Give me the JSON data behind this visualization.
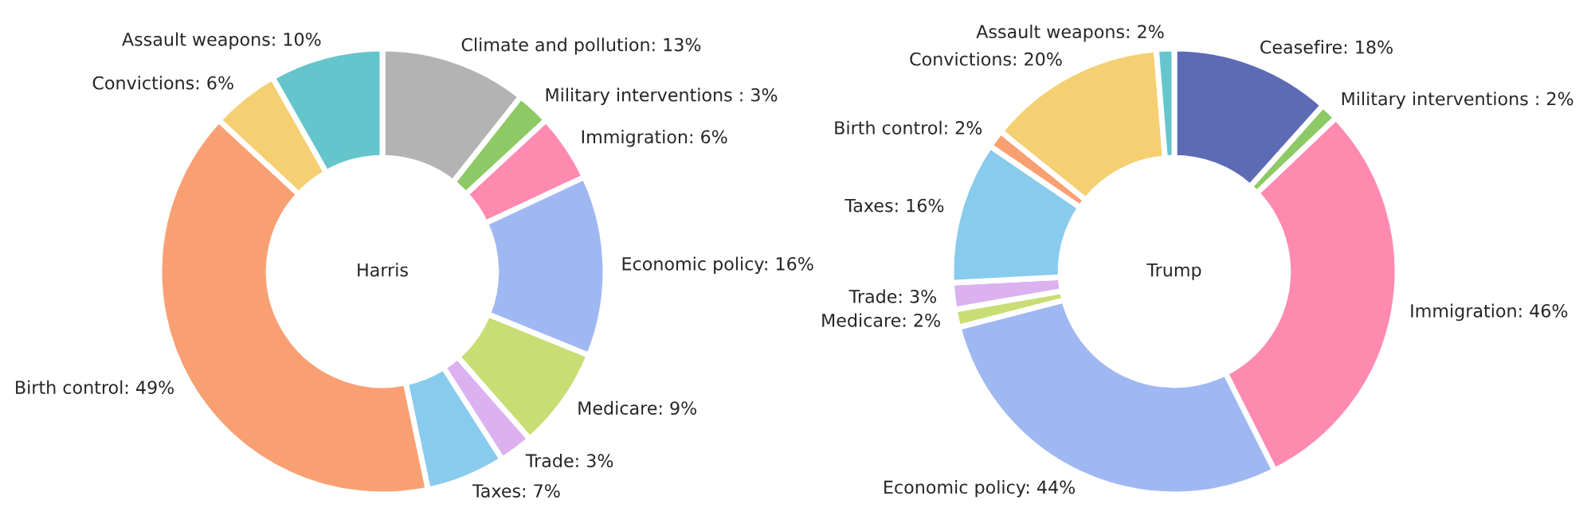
{
  "chart_data": [
    {
      "type": "donut",
      "title": "Harris",
      "categories": [
        "Climate and pollution",
        "Military interventions ",
        "Immigration",
        "Economic policy",
        "Medicare",
        "Trade",
        "Taxes",
        "Birth control",
        "Convictions",
        "Assault weapons"
      ],
      "values": [
        13,
        3,
        6,
        16,
        9,
        3,
        7,
        49,
        6,
        10
      ],
      "value_labels": [
        "13%",
        "3%",
        "6%",
        "16%",
        "9%",
        "3%",
        "7%",
        "49%",
        "6%",
        "10%"
      ],
      "colors": [
        "#b3b3b3",
        "#8dc965",
        "#ff8ab0",
        "#a0b8f2",
        "#c8dd73",
        "#dcb1f0",
        "#89cbed",
        "#f9a073",
        "#f5d072",
        "#66c5cc"
      ]
    },
    {
      "type": "donut",
      "title": "Trump",
      "categories": [
        "Ceasefire",
        "Military interventions ",
        "Immigration",
        "Economic policy",
        "Medicare",
        "Trade",
        "Taxes",
        "Birth control",
        "Convictions",
        "Assault weapons"
      ],
      "values": [
        18,
        2,
        46,
        44,
        2,
        3,
        16,
        2,
        20,
        2
      ],
      "value_labels": [
        "18%",
        "2%",
        "46%",
        "44%",
        "2%",
        "3%",
        "16%",
        "2%",
        "20%",
        "2%"
      ],
      "colors": [
        "#5d6bb5",
        "#8dc965",
        "#ff8ab0",
        "#a0b8f2",
        "#c8dd73",
        "#dcb1f0",
        "#89cbed",
        "#f9a073",
        "#f5d072",
        "#66c5cc"
      ]
    }
  ]
}
